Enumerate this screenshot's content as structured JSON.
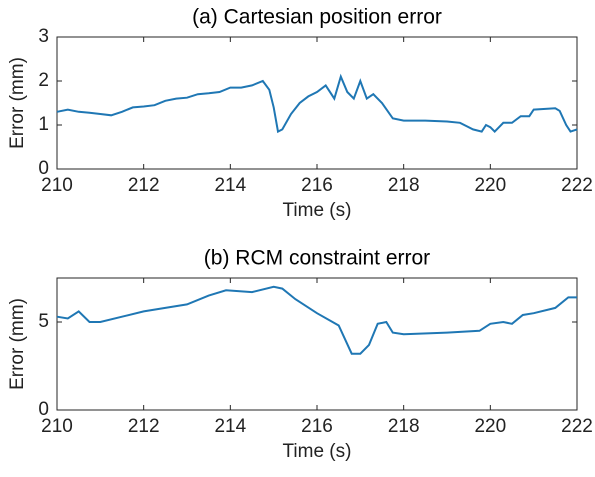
{
  "chart_data": [
    {
      "type": "line",
      "title": "(a) Cartesian position error",
      "xlabel": "Time (s)",
      "ylabel": "Error (mm)",
      "xlim": [
        210,
        222
      ],
      "xticks": [
        210,
        212,
        214,
        216,
        218,
        220,
        222
      ],
      "ylim": [
        0,
        3
      ],
      "yticks": [
        0,
        1,
        2,
        3
      ],
      "series": [
        {
          "color": "#1f77b4",
          "x": [
            210,
            210.25,
            210.5,
            210.75,
            211,
            211.25,
            211.5,
            211.75,
            212,
            212.25,
            212.5,
            212.75,
            213,
            213.25,
            213.5,
            213.75,
            214,
            214.25,
            214.5,
            214.75,
            214.9,
            215,
            215.1,
            215.2,
            215.4,
            215.6,
            215.8,
            216,
            216.2,
            216.4,
            216.55,
            216.7,
            216.85,
            217,
            217.15,
            217.3,
            217.5,
            217.75,
            218,
            218.5,
            219,
            219.3,
            219.6,
            219.8,
            219.9,
            220,
            220.1,
            220.3,
            220.5,
            220.7,
            220.9,
            221,
            221.5,
            221.6,
            221.75,
            221.85,
            222
          ],
          "values": [
            1.3,
            1.35,
            1.3,
            1.28,
            1.25,
            1.22,
            1.3,
            1.4,
            1.42,
            1.45,
            1.55,
            1.6,
            1.62,
            1.7,
            1.72,
            1.75,
            1.85,
            1.85,
            1.9,
            2.0,
            1.8,
            1.4,
            0.85,
            0.9,
            1.25,
            1.5,
            1.65,
            1.75,
            1.9,
            1.6,
            2.1,
            1.75,
            1.6,
            2.0,
            1.6,
            1.7,
            1.5,
            1.15,
            1.1,
            1.1,
            1.08,
            1.05,
            0.9,
            0.85,
            1.0,
            0.95,
            0.85,
            1.05,
            1.05,
            1.2,
            1.2,
            1.35,
            1.38,
            1.32,
            1.0,
            0.85,
            0.9
          ]
        }
      ]
    },
    {
      "type": "line",
      "title": "(b) RCM constraint error",
      "xlabel": "Time (s)",
      "ylabel": "Error (mm)",
      "xlim": [
        210,
        222
      ],
      "xticks": [
        210,
        212,
        214,
        216,
        218,
        220,
        222
      ],
      "ylim": [
        0,
        7.5
      ],
      "yticks": [
        0,
        5
      ],
      "series": [
        {
          "color": "#1f77b4",
          "x": [
            210,
            210.25,
            210.5,
            210.75,
            211,
            211.5,
            212,
            212.5,
            213,
            213.5,
            213.9,
            214.5,
            215,
            215.2,
            215.5,
            216,
            216.5,
            216.8,
            217,
            217.2,
            217.4,
            217.6,
            217.75,
            218,
            219,
            219.75,
            220,
            220.3,
            220.5,
            220.75,
            221,
            221.5,
            221.8,
            222
          ],
          "values": [
            5.3,
            5.2,
            5.6,
            5.0,
            5.0,
            5.3,
            5.6,
            5.8,
            6.0,
            6.5,
            6.8,
            6.7,
            7.0,
            6.9,
            6.3,
            5.5,
            4.8,
            3.2,
            3.2,
            3.7,
            4.9,
            5.0,
            4.4,
            4.3,
            4.4,
            4.5,
            4.9,
            5.0,
            4.9,
            5.4,
            5.5,
            5.8,
            6.4,
            6.4
          ]
        }
      ]
    }
  ]
}
